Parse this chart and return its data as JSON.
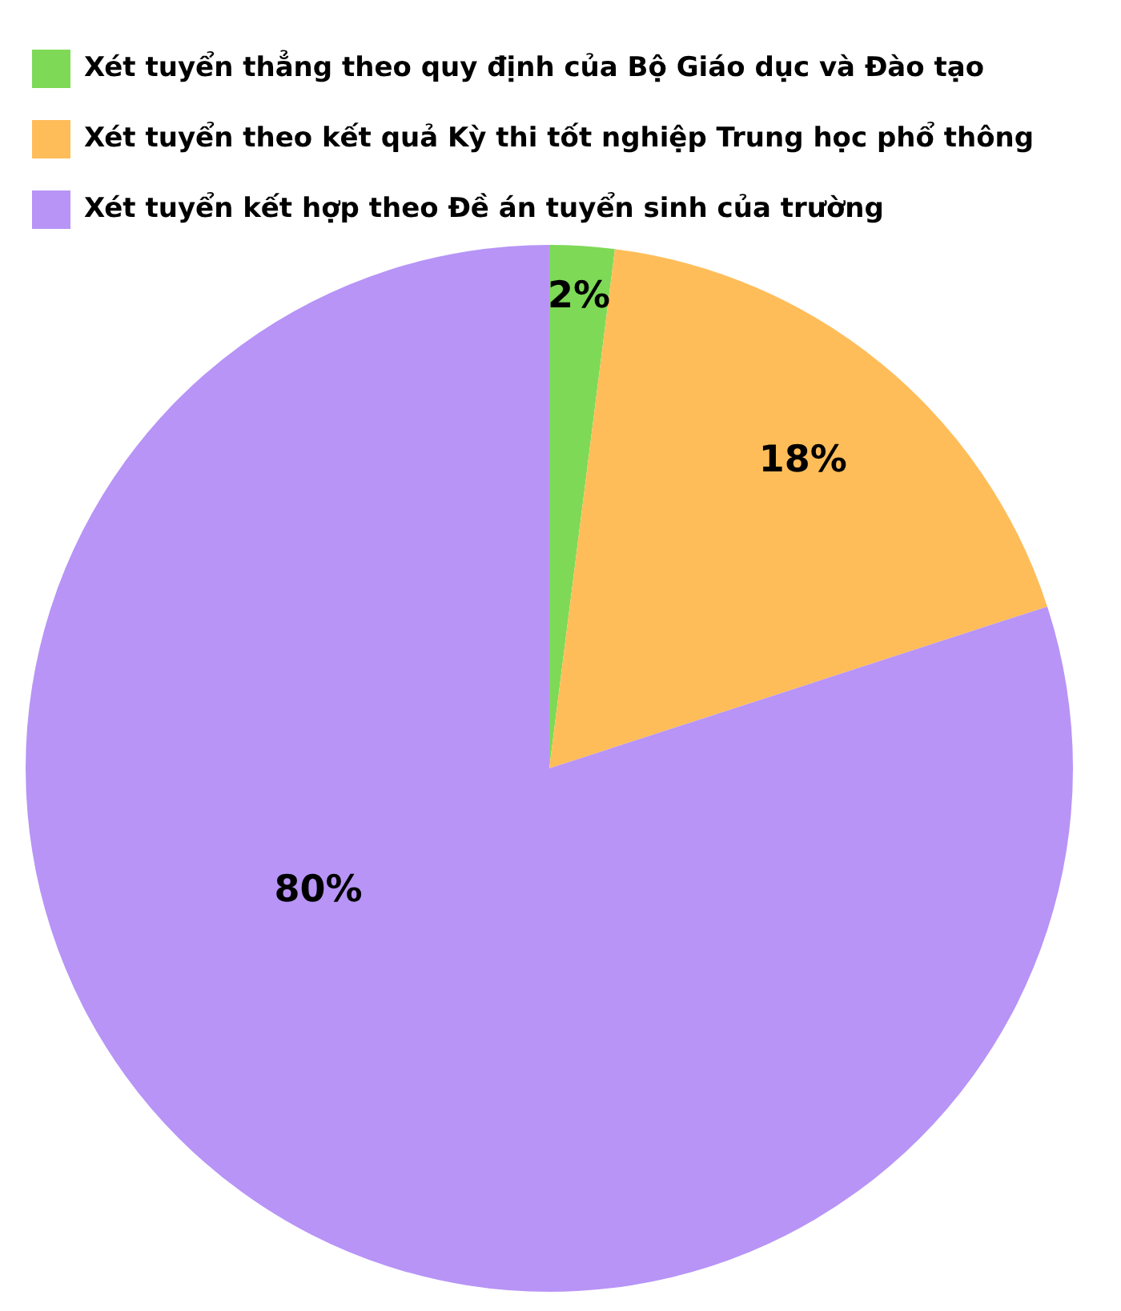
{
  "chart_data": {
    "type": "pie",
    "categories": [
      "Xét tuyển thẳng theo quy định của Bộ Giáo dục và Đào tạo",
      "Xét tuyển theo kết quả Kỳ thi tốt nghiệp Trung học phổ thông",
      "Xét tuyển kết hợp theo Đề án tuyển sinh của trường"
    ],
    "values": [
      2,
      18,
      80
    ],
    "colors": [
      "#7ed957",
      "#ffbd59",
      "#b794f6"
    ],
    "value_labels": [
      "2%",
      "18%",
      "80%"
    ],
    "legend": "top left"
  }
}
